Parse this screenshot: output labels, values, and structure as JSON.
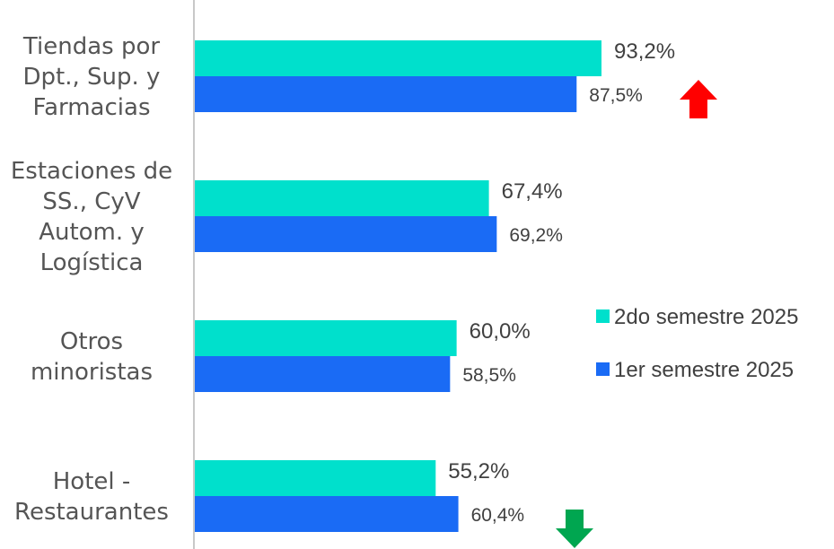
{
  "chart_data": {
    "type": "bar",
    "orientation": "horizontal",
    "title": "",
    "xlabel": "",
    "ylabel": "",
    "xlim": [
      0,
      100
    ],
    "grid": false,
    "legend_position": "right",
    "categories": [
      [
        "Tiendas por",
        "Dpt., Sup. y",
        "Farmacias"
      ],
      [
        "Estaciones de",
        "SS., CyV",
        "Autom. y",
        "Logística"
      ],
      [
        "Otros",
        "minoristas"
      ],
      [
        "Hotel -",
        "Restaurantes"
      ]
    ],
    "series": [
      {
        "name": "2do semestre 2025",
        "color": "#00E0CC",
        "values": [
          93.2,
          67.4,
          60.0,
          55.2
        ],
        "labels": [
          "93,2%",
          "67,4%",
          "60,0%",
          "55,2%"
        ]
      },
      {
        "name": "1er semestre 2025",
        "color": "#1A6BF5",
        "values": [
          87.5,
          69.2,
          58.5,
          60.4
        ],
        "labels": [
          "87,5%",
          "69,2%",
          "58,5%",
          "60,4%"
        ]
      }
    ],
    "annotations": [
      {
        "category_index": 0,
        "icon": "arrow-up-icon",
        "color": "#FF0000"
      },
      {
        "category_index": 3,
        "icon": "arrow-down-icon",
        "color": "#00A650"
      }
    ]
  }
}
